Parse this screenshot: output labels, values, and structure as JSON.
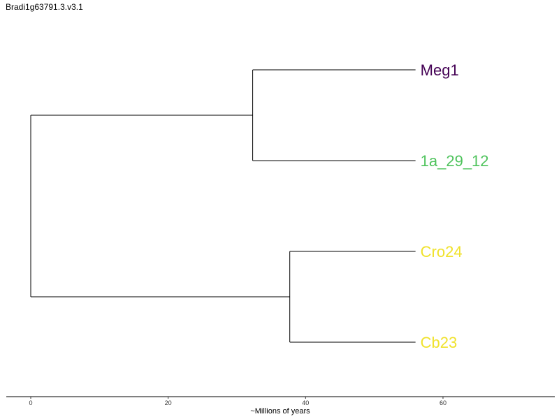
{
  "title": "Bradi1g63791.3.v3.1",
  "chart_data": {
    "type": "dendrogram",
    "xlabel": "~Millions of years",
    "xlim": [
      -3.5,
      76
    ],
    "x_ticks": [
      0,
      20,
      40,
      60
    ],
    "tips": [
      {
        "label": "Meg1",
        "color": "#440154"
      },
      {
        "label": "1a_29_12",
        "color": "#4ec35c"
      },
      {
        "label": "Cro24",
        "color": "#f0e22c"
      },
      {
        "label": "Cb23",
        "color": "#f0e22c"
      }
    ],
    "nodes": [
      {
        "id": "root",
        "x": 0,
        "children": [
          "clade_a",
          "clade_b"
        ]
      },
      {
        "id": "clade_a",
        "x": 32.3,
        "children": [
          "Meg1",
          "1a_29_12"
        ]
      },
      {
        "id": "clade_b",
        "x": 37.7,
        "children": [
          "Cro24",
          "Cb23"
        ]
      }
    ],
    "tip_x": 56
  }
}
